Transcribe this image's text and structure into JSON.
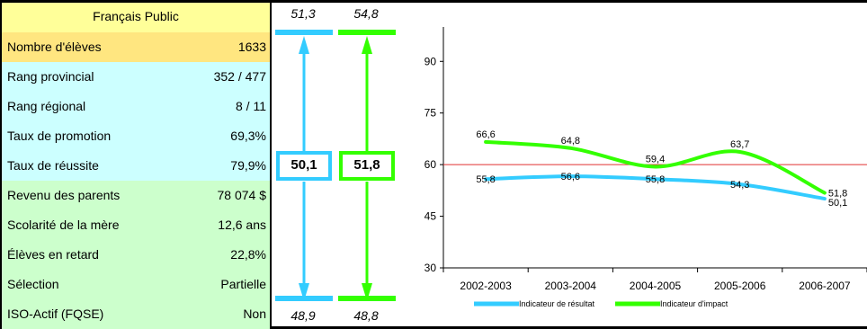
{
  "table": {
    "header": "Français Public",
    "rows": [
      {
        "label": "Nombre d'élèves",
        "value": "1633",
        "bg": "#ffe680"
      },
      {
        "label": "Rang provincial",
        "value": "352 / 477",
        "bg": "#ccffff"
      },
      {
        "label": "Rang régional",
        "value": "8 / 11",
        "bg": "#ccffff"
      },
      {
        "label": "Taux de promotion",
        "value": "69,3%",
        "bg": "#ccffff"
      },
      {
        "label": "Taux de réussite",
        "value": "79,9%",
        "bg": "#ccffff"
      },
      {
        "label": "Revenu des parents",
        "value": "78 074 $",
        "bg": "#ccffcc"
      },
      {
        "label": "Scolarité de la mère",
        "value": "12,6 ans",
        "bg": "#ccffcc"
      },
      {
        "label": "Élèves en retard",
        "value": "22,8%",
        "bg": "#ccffcc"
      },
      {
        "label": "Sélection",
        "value": "Partielle",
        "bg": "#ccffcc"
      },
      {
        "label": "ISO-Actif (FQSE)",
        "value": "Non",
        "bg": "#ccffcc"
      }
    ]
  },
  "scales": {
    "blue": {
      "top": "51,3",
      "value": "50,1",
      "bottom": "48,9",
      "color": "#33ccff"
    },
    "green": {
      "top": "54,8",
      "value": "51,8",
      "bottom": "48,8",
      "color": "#33ff00"
    }
  },
  "chart_data": {
    "type": "line",
    "categories": [
      "2002-2003",
      "2003-2004",
      "2004-2005",
      "2005-2006",
      "2006-2007"
    ],
    "ylim": [
      30,
      100
    ],
    "yticks": [
      "30",
      "45",
      "60",
      "75",
      "90"
    ],
    "reference_line": 60,
    "series": [
      {
        "name": "Indicateur de résultat",
        "color": "#33ccff",
        "values": [
          55.8,
          56.6,
          55.8,
          54.3,
          50.1
        ],
        "labels": [
          "55,8",
          "56,6",
          "55,8",
          "54,3",
          "50,1"
        ]
      },
      {
        "name": "Indicateur d'impact",
        "color": "#33ff00",
        "values": [
          66.6,
          64.8,
          59.4,
          63.7,
          51.8
        ],
        "labels": [
          "66,6",
          "64,8",
          "59,4",
          "63,7",
          "51,8"
        ]
      }
    ]
  }
}
